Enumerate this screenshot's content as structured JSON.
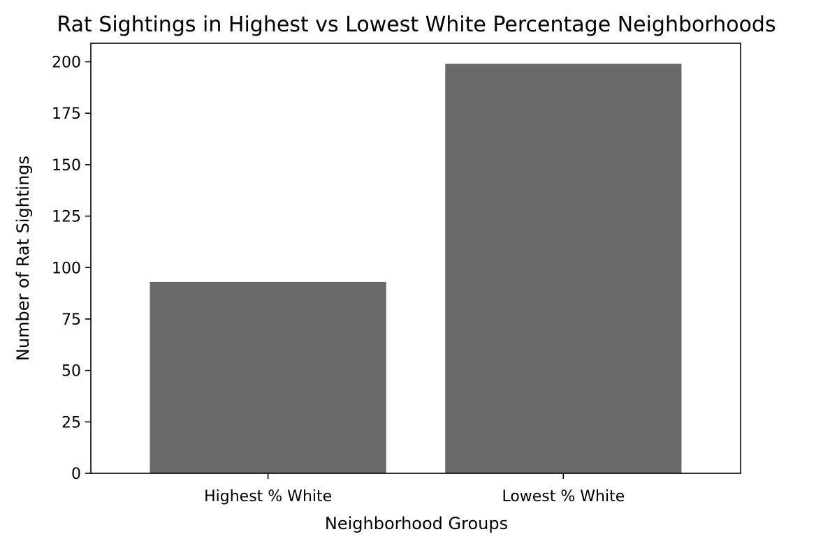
{
  "chart_data": {
    "type": "bar",
    "title": "Rat Sightings in Highest vs Lowest White Percentage Neighborhoods",
    "xlabel": "Neighborhood Groups",
    "ylabel": "Number of Rat Sightings",
    "categories": [
      "Highest % White",
      "Lowest % White"
    ],
    "values": [
      93,
      199
    ],
    "ylim": [
      0,
      209
    ],
    "yticks": [
      0,
      25,
      50,
      75,
      100,
      125,
      150,
      175,
      200
    ],
    "grid": false,
    "legend": "none",
    "bar_color": "#696969"
  }
}
